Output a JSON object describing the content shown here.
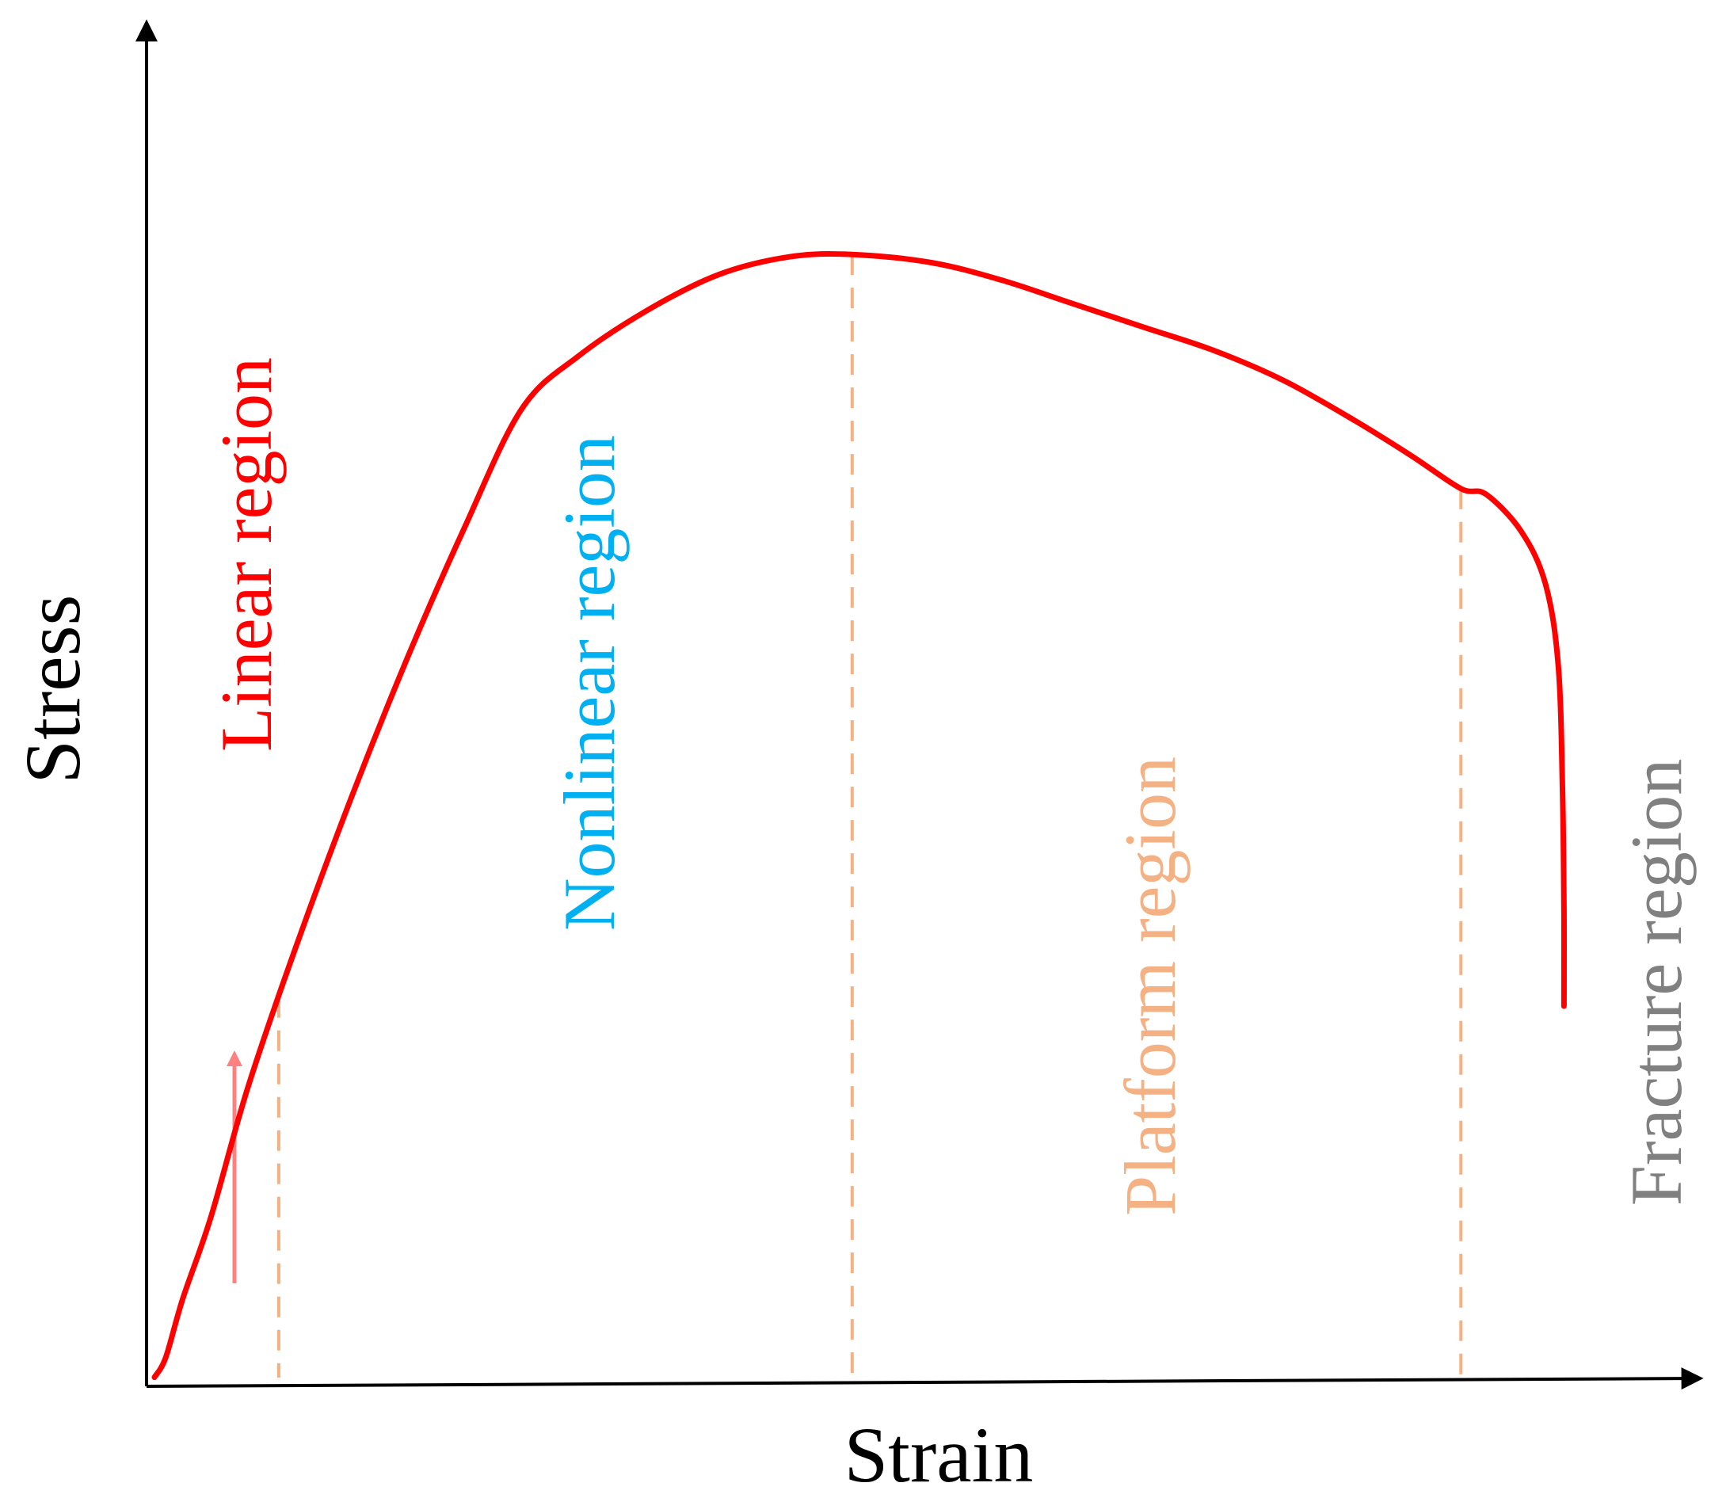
{
  "chart_data": {
    "type": "line",
    "xlabel": "Strain",
    "ylabel": "Stress",
    "xlim": [
      0,
      100
    ],
    "ylim": [
      0,
      100
    ],
    "axis_ticks": false,
    "grid": false,
    "series": [
      {
        "color": "#ff0000",
        "x": [
          0,
          0.8,
          2,
          4,
          6.6,
          10,
          14,
          18,
          22,
          26,
          30,
          35,
          40,
          45,
          49.4,
          55,
          60,
          65,
          70,
          75,
          80,
          85,
          89,
          92.5,
          94.3,
          96.8,
          98.5,
          99.4,
          99.7,
          99.8,
          99.8
        ],
        "y": [
          0.3,
          2,
          7,
          14,
          25,
          37,
          50,
          62,
          73,
          83,
          87.5,
          91.5,
          94.5,
          96,
          96.2,
          95.5,
          94,
          92,
          90,
          88,
          85.4,
          82,
          79,
          76.2,
          75.7,
          72.5,
          68,
          61,
          50,
          40,
          32
        ],
        "comment_y_units": "stress as percent of the curve's peak height"
      }
    ],
    "region_boundaries_x": [
      8.8,
      49.4,
      92.5
    ],
    "regions": [
      {
        "label": "Linear region",
        "color": "#ff0000"
      },
      {
        "label": "Nonlinear region",
        "color": "#00b0f0"
      },
      {
        "label": "Platform region",
        "color": "#f4b183"
      },
      {
        "label": "Fracture region",
        "color": "#808080"
      }
    ],
    "colors": {
      "curve": "#ff0000",
      "boundary": "#f4b183",
      "arrow": "#ff8080",
      "axis": "#000000"
    }
  }
}
